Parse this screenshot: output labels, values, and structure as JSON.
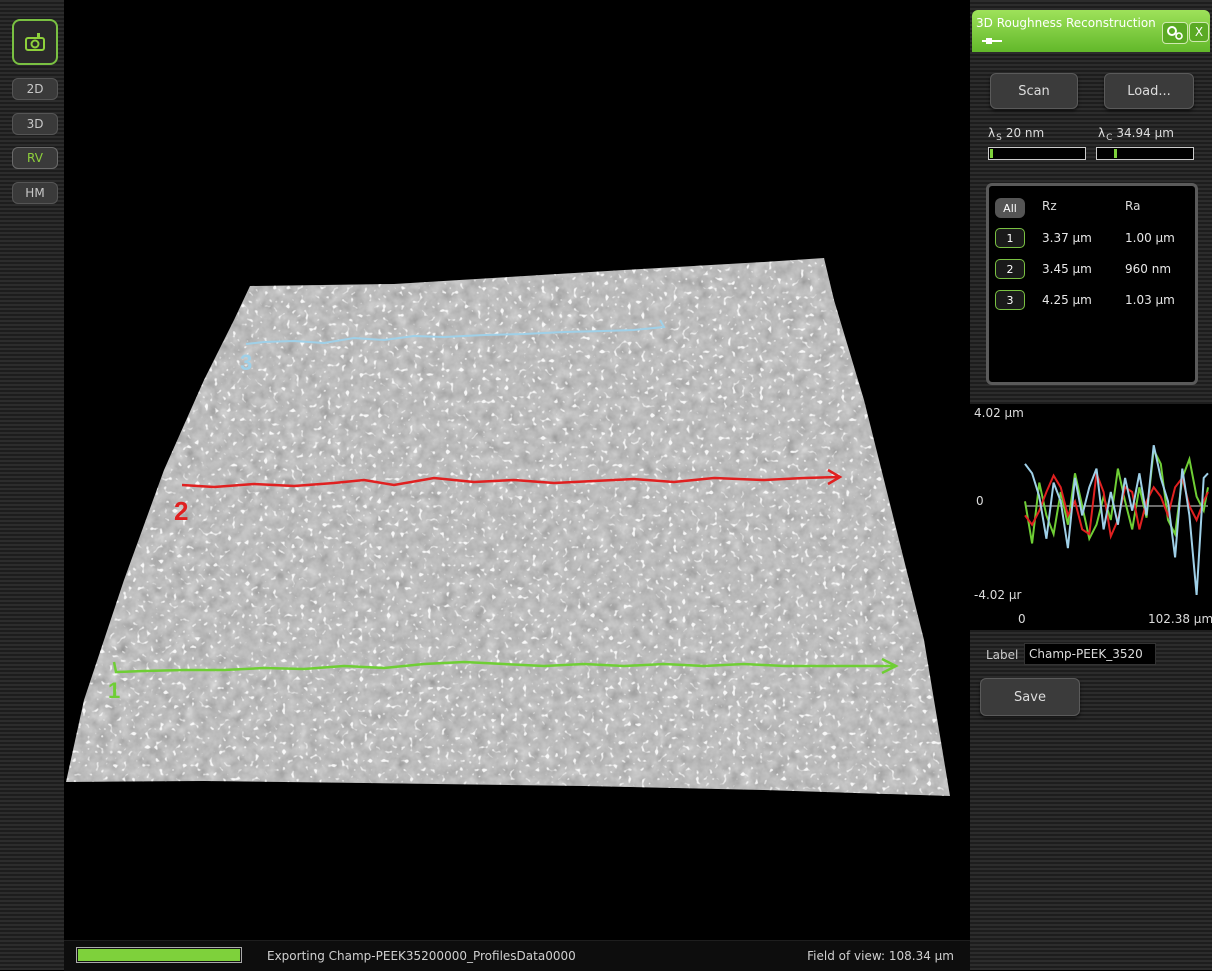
{
  "toolbar": {
    "camera_icon": "camera-icon",
    "buttons": [
      {
        "label": "2D",
        "active": false
      },
      {
        "label": "3D",
        "active": false
      },
      {
        "label": "RV",
        "active": true
      },
      {
        "label": "HM",
        "active": false
      }
    ]
  },
  "viewport": {
    "profile_labels": [
      "1",
      "2",
      "3"
    ],
    "profile_colors": [
      "#6fce35",
      "#e02020",
      "#9fd0e8"
    ]
  },
  "status": {
    "progress": 1.0,
    "message": "Exporting Champ-PEEK35200000_ProfilesData0000",
    "field_of_view": "Field of view: 108.34 μm"
  },
  "panel": {
    "title": "3D Roughness Reconstruction",
    "close_label": "X",
    "scan_label": "Scan",
    "load_label": "Load...",
    "lambda_s": {
      "symbol": "λ",
      "sub": "S",
      "value": "20 nm",
      "level": 0.02
    },
    "lambda_c": {
      "symbol": "λ",
      "sub": "C",
      "value": "34.94 μm",
      "level": 0.18
    },
    "results": {
      "all_label": "All",
      "headers": [
        "Rz",
        "Ra"
      ],
      "rows": [
        {
          "id": "1",
          "rz": "3.37 μm",
          "ra": "1.00 μm"
        },
        {
          "id": "2",
          "rz": "3.45 μm",
          "ra": "960 nm"
        },
        {
          "id": "3",
          "rz": "4.25 μm",
          "ra": "1.03 μm"
        }
      ]
    },
    "label_caption": "Label",
    "label_value": "Champ-PEEK_3520",
    "save_label": "Save"
  },
  "chart_data": {
    "type": "line",
    "y_max_label": "4.02 μm",
    "y_zero_label": "0",
    "y_min_label": "-4.02 μr",
    "x_min_label": "0",
    "x_max_label": "102.38 μm",
    "ylim": [
      -4.02,
      4.02
    ],
    "xlim": [
      0,
      102.38
    ],
    "x": [
      0,
      4,
      8,
      12,
      16,
      20,
      24,
      28,
      32,
      36,
      40,
      44,
      48,
      52,
      56,
      60,
      64,
      68,
      72,
      76,
      80,
      84,
      88,
      92,
      96,
      100,
      102.38
    ],
    "series": [
      {
        "color": "#6fce35",
        "values": [
          0.2,
          -1.6,
          1.0,
          -0.4,
          -1.2,
          0.6,
          -0.8,
          1.4,
          0.0,
          -1.4,
          -0.8,
          0.4,
          -0.6,
          1.6,
          0.2,
          -1.0,
          0.8,
          -0.5,
          2.4,
          1.8,
          -0.6,
          -1.2,
          1.2,
          2.0,
          0.4,
          -0.2,
          0.8
        ]
      },
      {
        "color": "#e02020",
        "values": [
          -0.4,
          -0.8,
          -0.2,
          0.6,
          1.3,
          0.8,
          -0.4,
          0.2,
          -1.0,
          -1.2,
          1.4,
          0.6,
          -1.3,
          -0.6,
          0.8,
          0.6,
          -1.0,
          0.2,
          0.8,
          0.4,
          -0.4,
          0.8,
          1.2,
          0.0,
          -0.6,
          0.2,
          0.6
        ]
      },
      {
        "color": "#9fd0e8",
        "values": [
          1.8,
          1.4,
          0.4,
          -1.4,
          1.0,
          0.2,
          -1.8,
          1.2,
          -0.4,
          0.8,
          1.6,
          -1.0,
          0.6,
          -0.8,
          1.2,
          -0.2,
          1.4,
          -0.4,
          2.6,
          1.2,
          0.2,
          -2.2,
          1.6,
          -0.4,
          -3.8,
          1.2,
          1.4
        ]
      }
    ]
  }
}
